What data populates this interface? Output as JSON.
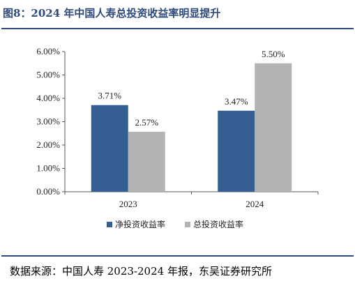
{
  "figure": {
    "title": "图8：2024 年中国人寿总投资收益率明显提升",
    "source": "数据来源：中国人寿 2023-2024 年报，东吴证券研究所"
  },
  "colors": {
    "series1": "#355f93",
    "series2": "#b3b3b3",
    "accent": "#2e4a7a"
  },
  "chart_data": {
    "type": "bar",
    "categories": [
      "2023",
      "2024"
    ],
    "series": [
      {
        "name": "净投资收益率",
        "values": [
          3.71,
          3.47
        ],
        "labels": [
          "3.71%",
          "3.47%"
        ]
      },
      {
        "name": "总投资收益率",
        "values": [
          2.57,
          5.5
        ],
        "labels": [
          "2.57%",
          "5.50%"
        ]
      }
    ],
    "yticks": [
      "0.00%",
      "1.00%",
      "2.00%",
      "3.00%",
      "4.00%",
      "5.00%",
      "6.00%"
    ],
    "ylim": [
      0,
      6
    ],
    "legend": "bottom",
    "grid": false
  }
}
